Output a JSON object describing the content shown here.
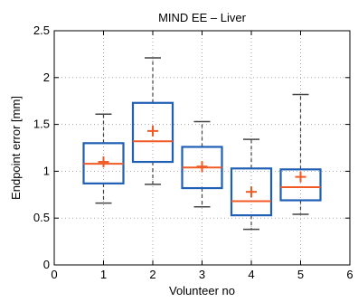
{
  "chart_data": {
    "type": "box",
    "title": "MIND EE – Liver",
    "xlabel": "Volunteer no",
    "ylabel": "Endpoint error [mm]",
    "xlim": [
      0,
      6
    ],
    "ylim": [
      0,
      2.5
    ],
    "xticks": [
      0,
      1,
      2,
      3,
      4,
      5,
      6
    ],
    "yticks": [
      0,
      0.5,
      1,
      1.5,
      2,
      2.5
    ],
    "grid": true,
    "colors": {
      "box": "#1f5fb4",
      "median": "#f15a24",
      "mean": "#f15a24",
      "whisker": "#444444",
      "grid": "#aaaaaa"
    },
    "boxes": [
      {
        "x": 1,
        "whisker_low": 0.66,
        "q1": 0.87,
        "median": 1.08,
        "q3": 1.3,
        "whisker_high": 1.61,
        "mean": 1.1
      },
      {
        "x": 2,
        "whisker_low": 0.86,
        "q1": 1.1,
        "median": 1.32,
        "q3": 1.73,
        "whisker_high": 2.21,
        "mean": 1.43
      },
      {
        "x": 3,
        "whisker_low": 0.62,
        "q1": 0.82,
        "median": 1.04,
        "q3": 1.26,
        "whisker_high": 1.53,
        "mean": 1.05
      },
      {
        "x": 4,
        "whisker_low": 0.38,
        "q1": 0.53,
        "median": 0.68,
        "q3": 1.03,
        "whisker_high": 1.34,
        "mean": 0.78
      },
      {
        "x": 5,
        "whisker_low": 0.54,
        "q1": 0.69,
        "median": 0.83,
        "q3": 1.02,
        "whisker_high": 1.82,
        "mean": 0.94
      }
    ]
  }
}
